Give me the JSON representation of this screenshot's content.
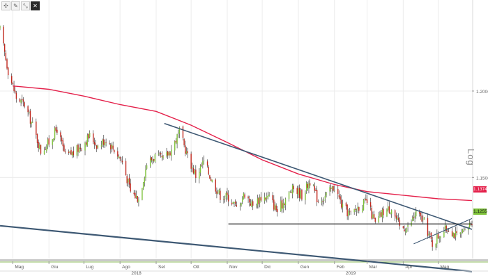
{
  "toolbar": {
    "icons": [
      "crosshair-icon",
      "pencil-icon",
      "arrows-icon",
      "close-icon"
    ],
    "glyphs": [
      "✣",
      "✎",
      "⤡",
      "✕"
    ]
  },
  "axis": {
    "log_label": "Log"
  },
  "price_tags": {
    "ma": "1.1374",
    "last": "1.1255"
  },
  "colors": {
    "candle_up": "#7ec23a",
    "candle_down": "#c0281e",
    "moving_average": "#e4204a",
    "trendline": "#3d5873",
    "support_line": "#1a1a1a",
    "grid": "#ececec"
  },
  "chart_data": {
    "type": "candlestick",
    "xlabel": "",
    "ylabel": "",
    "y_scale": "log",
    "ylim": [
      1.105,
      1.255
    ],
    "y_ticks": [
      "1.2000",
      "1.1500"
    ],
    "y_tick_values": [
      1.2,
      1.15
    ],
    "x_ticks": [
      "Mag",
      "Giu",
      "Lug",
      "Ago",
      "Set",
      "Ott",
      "Nov",
      "Dic",
      "Gen",
      "Feb",
      "Mar",
      "Apr",
      "Mag"
    ],
    "x_tick_dates": [
      "2018-05-01",
      "2018-06-01",
      "2018-07-01",
      "2018-08-01",
      "2018-09-01",
      "2018-10-01",
      "2018-11-01",
      "2018-12-01",
      "2019-01-01",
      "2019-02-01",
      "2019-03-01",
      "2019-04-01",
      "2019-05-01"
    ],
    "year_labels": [
      "2018",
      "2019"
    ],
    "year_dates": [
      "2018-08-15",
      "2019-02-15"
    ],
    "x_start": "2018-04-20",
    "x_end": "2019-05-30",
    "price_path": [
      [
        "2018-04-20",
        1.237
      ],
      [
        "2018-04-27",
        1.212
      ],
      [
        "2018-05-04",
        1.196
      ],
      [
        "2018-05-11",
        1.192
      ],
      [
        "2018-05-18",
        1.18
      ],
      [
        "2018-05-25",
        1.165
      ],
      [
        "2018-06-01",
        1.17
      ],
      [
        "2018-06-08",
        1.178
      ],
      [
        "2018-06-15",
        1.162
      ],
      [
        "2018-06-22",
        1.164
      ],
      [
        "2018-06-29",
        1.168
      ],
      [
        "2018-07-06",
        1.174
      ],
      [
        "2018-07-13",
        1.168
      ],
      [
        "2018-07-20",
        1.172
      ],
      [
        "2018-07-27",
        1.166
      ],
      [
        "2018-08-03",
        1.159
      ],
      [
        "2018-08-10",
        1.142
      ],
      [
        "2018-08-17",
        1.138
      ],
      [
        "2018-08-24",
        1.158
      ],
      [
        "2018-08-31",
        1.162
      ],
      [
        "2018-09-07",
        1.16
      ],
      [
        "2018-09-14",
        1.166
      ],
      [
        "2018-09-21",
        1.176
      ],
      [
        "2018-09-28",
        1.162
      ],
      [
        "2018-10-05",
        1.151
      ],
      [
        "2018-10-12",
        1.159
      ],
      [
        "2018-10-19",
        1.148
      ],
      [
        "2018-10-26",
        1.14
      ],
      [
        "2018-11-02",
        1.139
      ],
      [
        "2018-11-09",
        1.133
      ],
      [
        "2018-11-16",
        1.141
      ],
      [
        "2018-11-23",
        1.134
      ],
      [
        "2018-11-30",
        1.139
      ],
      [
        "2018-12-07",
        1.139
      ],
      [
        "2018-12-14",
        1.131
      ],
      [
        "2018-12-21",
        1.138
      ],
      [
        "2018-12-28",
        1.144
      ],
      [
        "2019-01-04",
        1.14
      ],
      [
        "2019-01-11",
        1.148
      ],
      [
        "2019-01-18",
        1.137
      ],
      [
        "2019-01-25",
        1.14
      ],
      [
        "2019-02-01",
        1.145
      ],
      [
        "2019-02-08",
        1.133
      ],
      [
        "2019-02-15",
        1.129
      ],
      [
        "2019-02-22",
        1.134
      ],
      [
        "2019-03-01",
        1.136
      ],
      [
        "2019-03-08",
        1.124
      ],
      [
        "2019-03-15",
        1.131
      ],
      [
        "2019-03-22",
        1.133
      ],
      [
        "2019-03-29",
        1.122
      ],
      [
        "2019-04-05",
        1.122
      ],
      [
        "2019-04-12",
        1.13
      ],
      [
        "2019-04-19",
        1.125
      ],
      [
        "2019-04-26",
        1.113
      ],
      [
        "2019-05-03",
        1.119
      ],
      [
        "2019-05-10",
        1.122
      ],
      [
        "2019-05-17",
        1.117
      ],
      [
        "2019-05-24",
        1.119
      ],
      [
        "2019-05-30",
        1.126
      ]
    ],
    "series": [
      {
        "type": "line",
        "points": [
          [
            "2018-05-01",
            1.203
          ],
          [
            "2018-06-01",
            1.201
          ],
          [
            "2018-07-01",
            1.197
          ],
          [
            "2018-08-01",
            1.192
          ],
          [
            "2018-09-01",
            1.188
          ],
          [
            "2018-10-01",
            1.18
          ],
          [
            "2018-11-01",
            1.17
          ],
          [
            "2018-12-01",
            1.16
          ],
          [
            "2019-01-01",
            1.152
          ],
          [
            "2019-02-01",
            1.146
          ],
          [
            "2019-03-01",
            1.142
          ],
          [
            "2019-04-01",
            1.14
          ],
          [
            "2019-05-01",
            1.138
          ],
          [
            "2019-05-30",
            1.137
          ]
        ]
      },
      {
        "type": "line",
        "points": [
          [
            "2018-09-08",
            1.181
          ],
          [
            "2019-05-30",
            1.121
          ]
        ]
      },
      {
        "type": "line",
        "points": [
          [
            "2018-11-02",
            1.124
          ],
          [
            "2019-05-30",
            1.124
          ]
        ]
      },
      {
        "type": "line",
        "points": [
          [
            "2018-04-20",
            1.123
          ],
          [
            "2019-05-30",
            1.098
          ]
        ]
      },
      {
        "type": "line",
        "points": [
          [
            "2019-04-10",
            1.113
          ],
          [
            "2019-05-30",
            1.127
          ]
        ]
      }
    ]
  }
}
